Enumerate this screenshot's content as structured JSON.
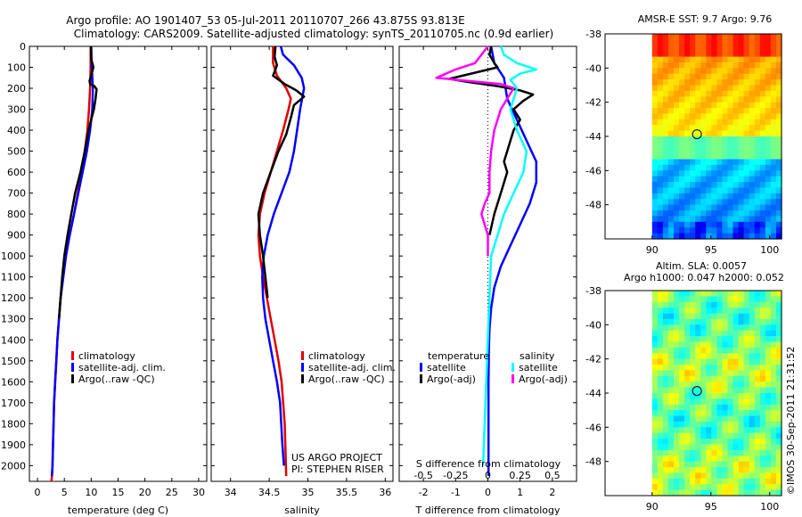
{
  "title": {
    "line1": "Argo profile: AO 1901407_53 05-Jul-2011 20110707_266 43.875S 93.813E",
    "line2": "Climatology: CARS2009. Satellite-adjusted climatology: synTS_20110705.nc (0.9d earlier)"
  },
  "colors": {
    "climatology": "#e00000",
    "satellite": "#0000ff",
    "argo": "#000000",
    "sal_satellite": "#00ffff",
    "sal_argo": "#ff00ff"
  },
  "chart_data": [
    {
      "type": "line",
      "id": "temperature",
      "xlabel": "temperature (deg C)",
      "ylabel": "",
      "xlim": [
        -1.5,
        31.5
      ],
      "ylim": [
        2075,
        0
      ],
      "xticks": [
        0,
        5,
        10,
        15,
        20,
        25,
        30
      ],
      "yticks": [
        0,
        100,
        200,
        300,
        400,
        500,
        600,
        700,
        800,
        900,
        1000,
        1100,
        1200,
        1300,
        1400,
        1500,
        1600,
        1700,
        1800,
        1900,
        2000
      ],
      "legend": [
        "climatology",
        "satellite-adj. clim.",
        "Argo(..raw -QC)"
      ],
      "series": [
        {
          "name": "climatology",
          "color": "#e00000",
          "x": [
            9.9,
            9.9,
            9.8,
            9.6,
            9.3,
            8.8,
            8.2,
            7.5,
            6.8,
            6.0,
            5.3,
            4.8,
            4.3,
            4.0,
            3.7,
            3.5,
            3.3,
            3.1,
            3.0,
            2.9,
            2.8,
            2.7,
            2.6
          ],
          "y": [
            0,
            100,
            200,
            300,
            400,
            500,
            600,
            700,
            800,
            900,
            1000,
            1100,
            1200,
            1300,
            1400,
            1500,
            1600,
            1700,
            1800,
            1900,
            2000,
            2050,
            2075
          ]
        },
        {
          "name": "satellite-adj. clim.",
          "color": "#0000ff",
          "x": [
            10.0,
            10.1,
            10.3,
            10.2,
            9.8,
            9.2,
            8.4,
            7.6,
            6.8,
            6.0,
            5.3,
            4.8,
            4.3,
            4.0,
            3.7,
            3.5,
            3.3,
            3.1,
            3.0,
            2.9,
            2.8,
            2.7
          ],
          "y": [
            0,
            100,
            200,
            300,
            400,
            500,
            600,
            700,
            800,
            900,
            1000,
            1100,
            1200,
            1300,
            1400,
            1500,
            1600,
            1700,
            1800,
            1900,
            2000,
            2050
          ]
        },
        {
          "name": "Argo(..raw -QC)",
          "color": "#000000",
          "x": [
            10.0,
            10.0,
            10.4,
            9.7,
            9.8,
            10.6,
            11.0,
            10.8,
            10.5,
            10.0,
            9.5,
            8.8,
            8.0,
            7.0,
            6.3,
            5.6,
            5.0,
            4.6,
            4.3,
            4.0
          ],
          "y": [
            0,
            60,
            100,
            165,
            180,
            190,
            205,
            250,
            300,
            350,
            400,
            500,
            600,
            700,
            800,
            900,
            1000,
            1100,
            1200,
            1300
          ]
        }
      ]
    },
    {
      "type": "line",
      "id": "salinity",
      "xlabel": "salinity",
      "ylabel": "",
      "xlim": [
        33.75,
        36.1
      ],
      "ylim": [
        2075,
        0
      ],
      "xticks": [
        34,
        34.5,
        35,
        35.5,
        36
      ],
      "legend": [
        "climatology",
        "satellite-adj. clim.",
        "Argo(..raw -QC)"
      ],
      "annotation": [
        "US ARGO PROJECT",
        "PI: STEPHEN RISER"
      ],
      "series": [
        {
          "name": "climatology",
          "color": "#e00000",
          "x": [
            34.55,
            34.55,
            34.6,
            34.72,
            34.78,
            34.75,
            34.68,
            34.6,
            34.52,
            34.44,
            34.38,
            34.36,
            34.38,
            34.42,
            34.47,
            34.52,
            34.57,
            34.62,
            34.66,
            34.7,
            34.72
          ],
          "y": [
            0,
            80,
            140,
            200,
            250,
            300,
            400,
            500,
            600,
            700,
            800,
            900,
            1000,
            1100,
            1200,
            1300,
            1400,
            1500,
            1600,
            1800,
            2050
          ]
        },
        {
          "name": "satellite-adj. clim.",
          "color": "#0000ff",
          "x": [
            34.65,
            34.68,
            34.82,
            34.92,
            34.95,
            34.9,
            34.86,
            34.82,
            34.76,
            34.66,
            34.56,
            34.48,
            34.43,
            34.41,
            34.42,
            34.45,
            34.5,
            34.55,
            34.6,
            34.64,
            34.67,
            34.69
          ],
          "y": [
            0,
            40,
            90,
            150,
            200,
            300,
            400,
            500,
            600,
            700,
            800,
            900,
            1000,
            1100,
            1200,
            1300,
            1400,
            1500,
            1600,
            1700,
            1900,
            2000
          ]
        },
        {
          "name": "Argo(..raw -QC)",
          "color": "#000000",
          "x": [
            34.58,
            34.57,
            34.6,
            34.58,
            34.55,
            34.7,
            34.85,
            34.95,
            34.82,
            34.78,
            34.72,
            34.62,
            34.52,
            34.42,
            34.36,
            34.38,
            34.42,
            34.48
          ],
          "y": [
            0,
            50,
            90,
            110,
            140,
            180,
            210,
            240,
            280,
            340,
            420,
            500,
            600,
            700,
            800,
            900,
            1000,
            1200
          ]
        }
      ]
    },
    {
      "type": "line",
      "id": "difference",
      "xlabel": "T difference from climatology",
      "x2label": "S difference from climatology",
      "xlim": [
        -2.75,
        2.75
      ],
      "ylim": [
        2075,
        0
      ],
      "xticks": [
        -2,
        -1,
        0,
        1,
        2
      ],
      "xticklabels": [
        "-2",
        "-1",
        "0",
        "1",
        "2"
      ],
      "x2ticks": [
        -2,
        -1,
        0,
        1,
        2
      ],
      "x2ticklabels": [
        "-0.5",
        "-0.25",
        "0",
        "0.25",
        "0.5"
      ],
      "legend_headers": [
        "temperature",
        "salinity"
      ],
      "legend": [
        "satellite",
        "Argo(-adj)",
        "satellite",
        "Argo(-adj)"
      ],
      "series": [
        {
          "name": "satellite",
          "group": "temperature",
          "color": "#0000ff",
          "x": [
            0.1,
            0.15,
            0.2,
            0.5,
            0.6,
            0.9,
            1.2,
            1.5,
            1.5,
            1.3,
            1.0,
            0.7,
            0.4,
            0.2,
            0.1,
            0.05,
            0.03,
            0.02,
            0.02,
            0.02,
            0.02
          ],
          "y": [
            0,
            40,
            80,
            150,
            250,
            350,
            450,
            550,
            650,
            750,
            850,
            950,
            1050,
            1150,
            1250,
            1350,
            1450,
            1600,
            1800,
            1950,
            2050
          ]
        },
        {
          "name": "Argo(-adj)",
          "group": "temperature",
          "color": "#000000",
          "x": [
            0.1,
            0.05,
            0.2,
            0.3,
            -1.2,
            -0.6,
            0.3,
            1.0,
            1.4,
            1.1,
            0.8,
            1.0,
            0.8,
            0.7,
            0.6,
            0.5,
            0.6,
            0.4,
            0.2,
            0.05
          ],
          "y": [
            0,
            40,
            80,
            100,
            155,
            170,
            190,
            210,
            230,
            260,
            300,
            350,
            400,
            450,
            500,
            550,
            600,
            700,
            800,
            900
          ]
        },
        {
          "name": "satellite",
          "group": "salinity",
          "color": "#00ffff",
          "x": [
            0.4,
            0.5,
            0.9,
            1.5,
            1.0,
            0.7,
            0.9,
            0.8,
            0.7,
            0.9,
            1.2,
            1.1,
            0.8,
            0.5,
            0.3,
            0.1,
            0.05,
            0.0,
            -0.05,
            -0.1,
            -0.15
          ],
          "y": [
            0,
            40,
            80,
            110,
            130,
            160,
            200,
            250,
            300,
            400,
            500,
            600,
            700,
            800,
            900,
            1000,
            1200,
            1400,
            1600,
            1800,
            2000
          ]
        },
        {
          "name": "Argo(-adj)",
          "group": "salinity",
          "color": "#ff00ff",
          "x": [
            0.0,
            -0.2,
            -0.4,
            -1.0,
            -1.6,
            0.4,
            0.8,
            0.6,
            0.4,
            0.2,
            0.1,
            0.05,
            0.05,
            -0.1,
            -0.2,
            -0.1,
            0.0,
            0.0
          ],
          "y": [
            0,
            40,
            80,
            110,
            150,
            180,
            200,
            250,
            300,
            400,
            500,
            600,
            700,
            750,
            800,
            850,
            900,
            1000
          ]
        }
      ]
    },
    {
      "type": "heatmap",
      "id": "sst_map",
      "title": "AMSR-E SST: 9.7 Argo: 9.76",
      "xlim": [
        86,
        101
      ],
      "ylim": [
        -50,
        -38
      ],
      "xticks": [
        90,
        95,
        100
      ],
      "yticks": [
        -38,
        -40,
        -42,
        -44,
        -46,
        -48
      ],
      "marker": {
        "x": 93.813,
        "y": -43.875
      }
    },
    {
      "type": "heatmap",
      "id": "sla_map",
      "title": [
        "Altim. SLA: 0.0057",
        "Argo h1000: 0.047 h2000: 0.052"
      ],
      "xlim": [
        86,
        101
      ],
      "ylim": [
        -50,
        -38
      ],
      "xticks": [
        90,
        95,
        100
      ],
      "yticks": [
        -38,
        -40,
        -42,
        -44,
        -46,
        -48
      ],
      "marker": {
        "x": 93.813,
        "y": -43.875
      }
    }
  ],
  "footer": {
    "stamp": "©IMOS 30-Sep-2011 21:31:52"
  }
}
